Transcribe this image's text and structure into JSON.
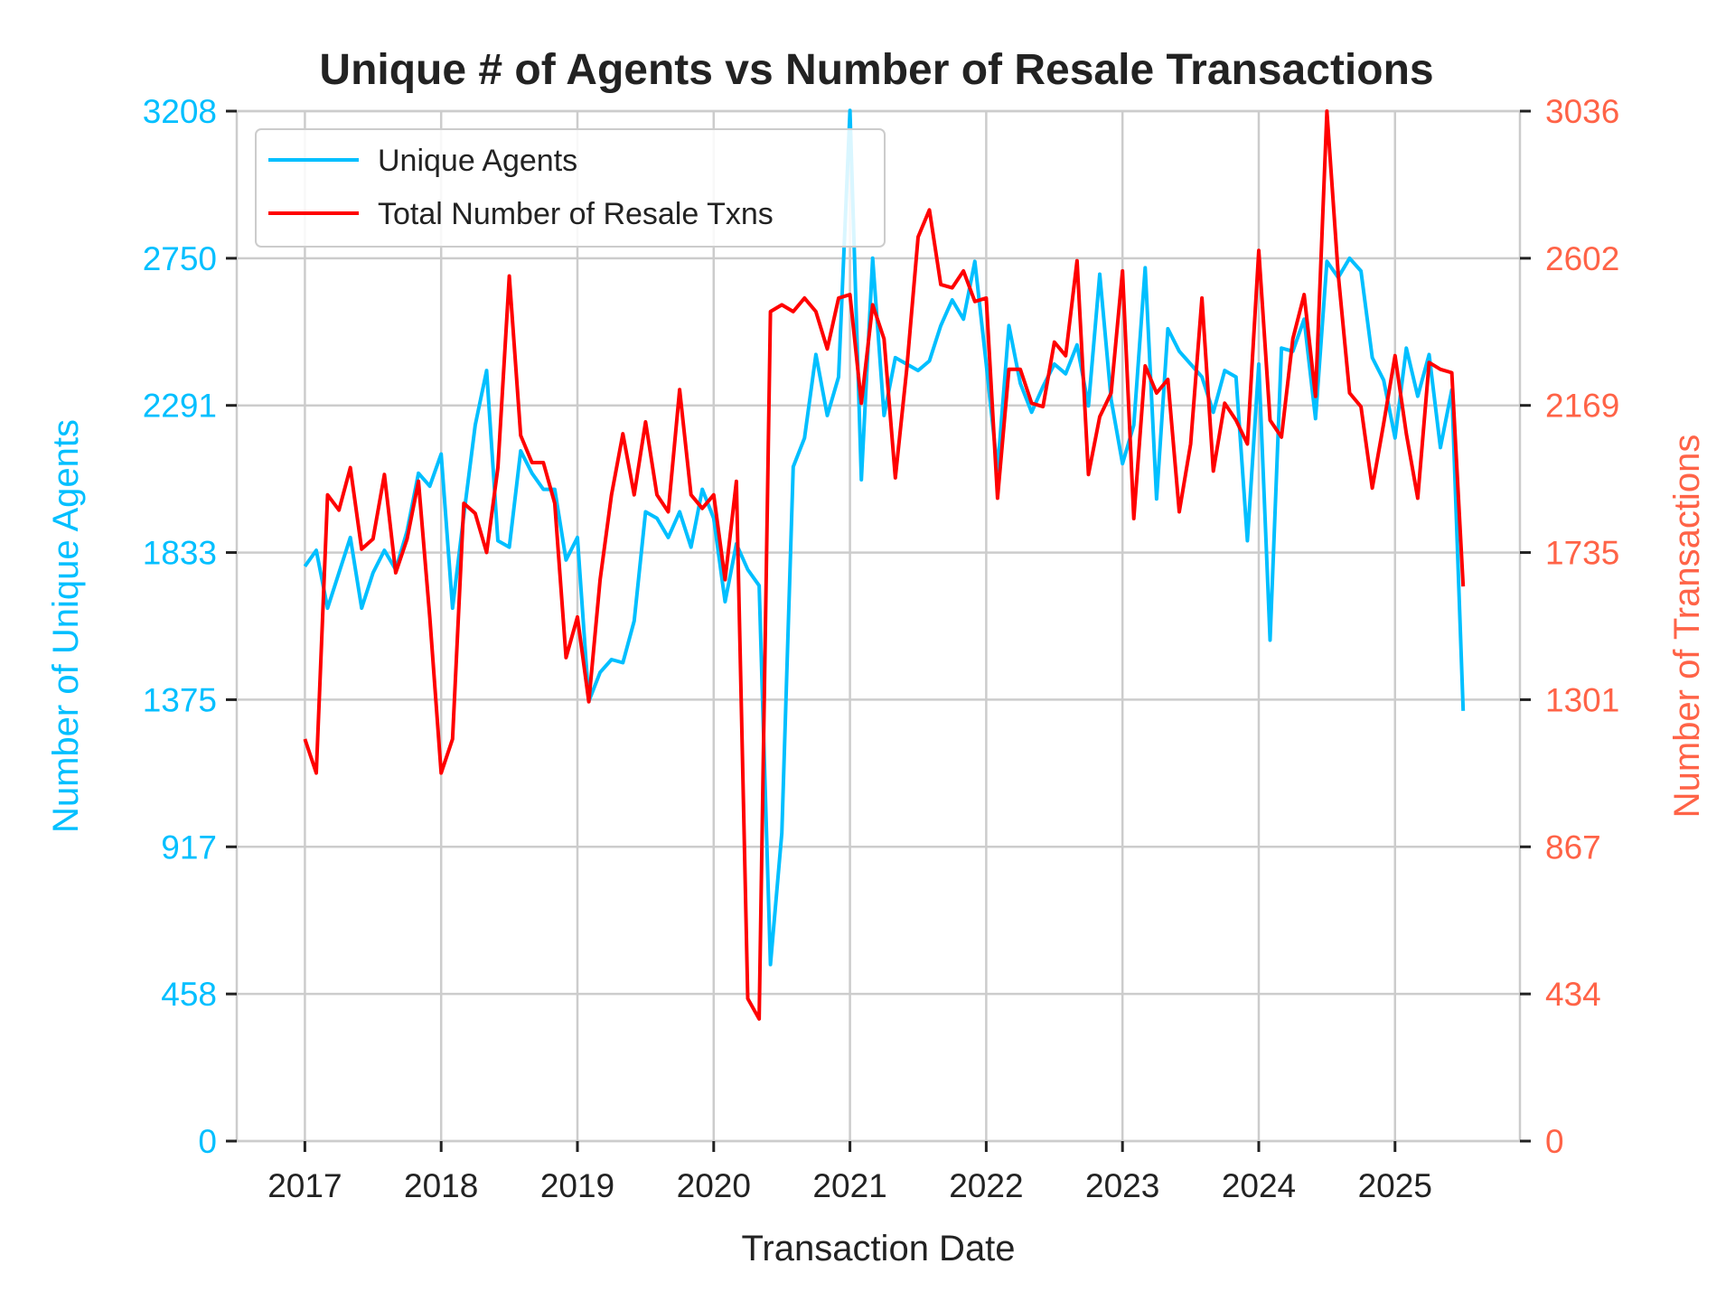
{
  "chart_data": {
    "type": "line",
    "title": "Unique # of Agents vs Number of Resale Transactions",
    "xlabel": "Transaction Date",
    "ylabel_left": "Number of Unique Agents",
    "ylabel_right": "Number of Transactions",
    "x_ticks": [
      "2017",
      "2018",
      "2019",
      "2020",
      "2021",
      "2022",
      "2023",
      "2024",
      "2025"
    ],
    "y_left_ticks": [
      "0",
      "458",
      "917",
      "1375",
      "1833",
      "2291",
      "2750",
      "3208"
    ],
    "y_right_ticks": [
      "0",
      "434",
      "867",
      "1301",
      "1735",
      "2169",
      "2602",
      "3036"
    ],
    "xlim": [
      "2016-07",
      "2025-12"
    ],
    "ylim_left": [
      0,
      3208
    ],
    "ylim_right": [
      0,
      3036
    ],
    "grid": true,
    "legend_position": "top-left",
    "colors": {
      "left_axis": "#00BFFF",
      "right_axis": "#FF6347",
      "agents": "#00BFFF",
      "txns": "#FF0000"
    },
    "series": [
      {
        "name": "Unique Agents",
        "axis": "left",
        "x": [
          "2017-01",
          "2017-02",
          "2017-03",
          "2017-04",
          "2017-05",
          "2017-06",
          "2017-07",
          "2017-08",
          "2017-09",
          "2017-10",
          "2017-11",
          "2017-12",
          "2018-01",
          "2018-02",
          "2018-03",
          "2018-04",
          "2018-05",
          "2018-06",
          "2018-07",
          "2018-08",
          "2018-09",
          "2018-10",
          "2018-11",
          "2018-12",
          "2019-01",
          "2019-02",
          "2019-03",
          "2019-04",
          "2019-05",
          "2019-06",
          "2019-07",
          "2019-08",
          "2019-09",
          "2019-10",
          "2019-11",
          "2019-12",
          "2020-01",
          "2020-02",
          "2020-03",
          "2020-04",
          "2020-05",
          "2020-06",
          "2020-07",
          "2020-08",
          "2020-09",
          "2020-10",
          "2020-11",
          "2020-12",
          "2021-01",
          "2021-02",
          "2021-03",
          "2021-04",
          "2021-05",
          "2021-06",
          "2021-07",
          "2021-08",
          "2021-09",
          "2021-10",
          "2021-11",
          "2021-12",
          "2022-01",
          "2022-02",
          "2022-03",
          "2022-04",
          "2022-05",
          "2022-06",
          "2022-07",
          "2022-08",
          "2022-09",
          "2022-10",
          "2022-11",
          "2022-12",
          "2023-01",
          "2023-02",
          "2023-03",
          "2023-04",
          "2023-05",
          "2023-06",
          "2023-07",
          "2023-08",
          "2023-09",
          "2023-10",
          "2023-11",
          "2023-12",
          "2024-01",
          "2024-02",
          "2024-03",
          "2024-04",
          "2024-05",
          "2024-06",
          "2024-07",
          "2024-08",
          "2024-09",
          "2024-10",
          "2024-11",
          "2024-12",
          "2025-01",
          "2025-02",
          "2025-03",
          "2025-04",
          "2025-05",
          "2025-06",
          "2025-07"
        ],
        "values": [
          1790,
          1840,
          1660,
          1770,
          1880,
          1660,
          1770,
          1840,
          1780,
          1900,
          2080,
          2040,
          2140,
          1660,
          1950,
          2230,
          2400,
          1870,
          1850,
          2150,
          2080,
          2030,
          2030,
          1810,
          1880,
          1370,
          1460,
          1500,
          1490,
          1620,
          1960,
          1940,
          1880,
          1960,
          1850,
          2030,
          1940,
          1680,
          1860,
          1780,
          1730,
          550,
          960,
          2100,
          2190,
          2450,
          2260,
          2380,
          3210,
          2060,
          2750,
          2260,
          2440,
          2420,
          2400,
          2430,
          2540,
          2620,
          2560,
          2740,
          2420,
          2090,
          2540,
          2360,
          2270,
          2350,
          2420,
          2390,
          2480,
          2290,
          2700,
          2310,
          2110,
          2230,
          2720,
          2000,
          2530,
          2460,
          2420,
          2380,
          2270,
          2400,
          2380,
          1870,
          2420,
          1560,
          2470,
          2460,
          2560,
          2250,
          2740,
          2690,
          2750,
          2710,
          2440,
          2370,
          2190,
          2470,
          2320,
          2450,
          2160,
          2340,
          1340
        ]
      },
      {
        "name": "Total Number of Resale Txns",
        "axis": "right",
        "x": [
          "2017-01",
          "2017-02",
          "2017-03",
          "2017-04",
          "2017-05",
          "2017-06",
          "2017-07",
          "2017-08",
          "2017-09",
          "2017-10",
          "2017-11",
          "2017-12",
          "2018-01",
          "2018-02",
          "2018-03",
          "2018-04",
          "2018-05",
          "2018-06",
          "2018-07",
          "2018-08",
          "2018-09",
          "2018-10",
          "2018-11",
          "2018-12",
          "2019-01",
          "2019-02",
          "2019-03",
          "2019-04",
          "2019-05",
          "2019-06",
          "2019-07",
          "2019-08",
          "2019-09",
          "2019-10",
          "2019-11",
          "2019-12",
          "2020-01",
          "2020-02",
          "2020-03",
          "2020-04",
          "2020-05",
          "2020-06",
          "2020-07",
          "2020-08",
          "2020-09",
          "2020-10",
          "2020-11",
          "2020-12",
          "2021-01",
          "2021-02",
          "2021-03",
          "2021-04",
          "2021-05",
          "2021-06",
          "2021-07",
          "2021-08",
          "2021-09",
          "2021-10",
          "2021-11",
          "2021-12",
          "2022-01",
          "2022-02",
          "2022-03",
          "2022-04",
          "2022-05",
          "2022-06",
          "2022-07",
          "2022-08",
          "2022-09",
          "2022-10",
          "2022-11",
          "2022-12",
          "2023-01",
          "2023-02",
          "2023-03",
          "2023-04",
          "2023-05",
          "2023-06",
          "2023-07",
          "2023-08",
          "2023-09",
          "2023-10",
          "2023-11",
          "2023-12",
          "2024-01",
          "2024-02",
          "2024-03",
          "2024-04",
          "2024-05",
          "2024-06",
          "2024-07",
          "2024-08",
          "2024-09",
          "2024-10",
          "2024-11",
          "2024-12",
          "2025-01",
          "2025-02",
          "2025-03",
          "2025-04",
          "2025-05",
          "2025-06",
          "2025-07"
        ],
        "values": [
          1185,
          1085,
          1905,
          1860,
          1985,
          1745,
          1775,
          1965,
          1675,
          1775,
          1945,
          1545,
          1085,
          1185,
          1880,
          1850,
          1735,
          1985,
          2550,
          2080,
          2000,
          2000,
          1880,
          1425,
          1545,
          1295,
          1655,
          1905,
          2085,
          1905,
          2120,
          1905,
          1855,
          2215,
          1905,
          1865,
          1905,
          1655,
          1945,
          420,
          360,
          2445,
          2465,
          2445,
          2485,
          2445,
          2335,
          2485,
          2495,
          2175,
          2465,
          2365,
          1955,
          2275,
          2665,
          2745,
          2525,
          2515,
          2565,
          2475,
          2485,
          1895,
          2275,
          2275,
          2175,
          2165,
          2355,
          2315,
          2595,
          1965,
          2135,
          2205,
          2565,
          1835,
          2285,
          2205,
          2245,
          1855,
          2055,
          2485,
          1975,
          2175,
          2125,
          2055,
          2625,
          2125,
          2075,
          2365,
          2495,
          2195,
          3036,
          2555,
          2205,
          2165,
          1925,
          2115,
          2315,
          2085,
          1895,
          2295,
          2275,
          2265,
          1635
        ]
      }
    ]
  }
}
